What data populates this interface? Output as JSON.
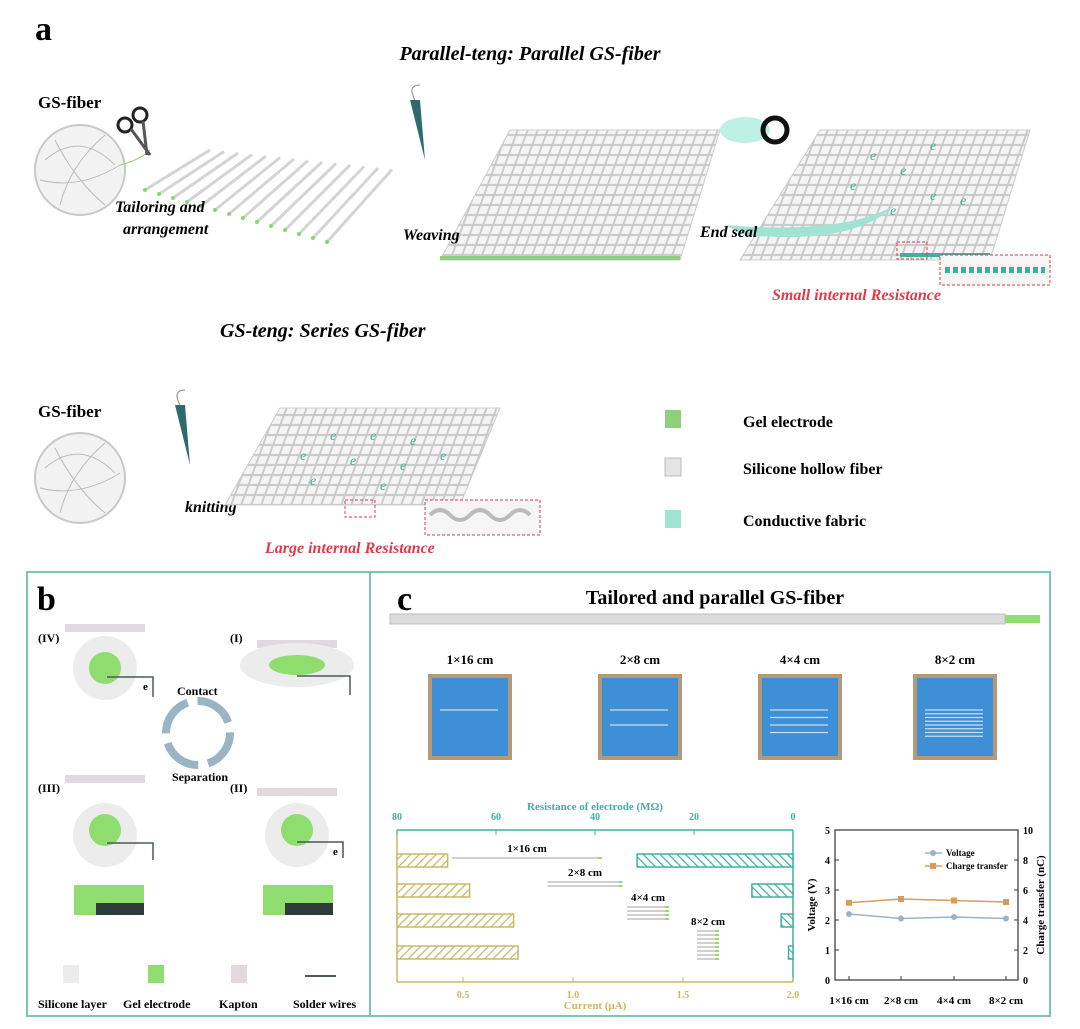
{
  "panel_a": {
    "label": "a",
    "title_parallel": "Parallel-teng: Parallel GS-fiber",
    "title_series": "GS-teng: Series GS-fiber",
    "gs_fiber_label": "GS-fiber",
    "step_tailoring": [
      "Tailoring and",
      "arrangement"
    ],
    "step_weaving": "Weaving",
    "step_end_seal": "End seal",
    "step_knitting": "knitting",
    "small_resistance": "Small  internal Resistance",
    "large_resistance": "Large  internal Resistance",
    "legend": [
      {
        "label": "Gel electrode",
        "color": "#8fd07a"
      },
      {
        "label": "Silicone hollow fiber",
        "color": "#e4e4e4"
      },
      {
        "label": "Conductive fabric",
        "color": "#9fe3d3"
      }
    ],
    "electron_symbol": "e",
    "highlight_color": "#e0394a"
  },
  "panel_b": {
    "label": "b",
    "states": [
      "(IV)",
      "(I)",
      "(III)",
      "(II)"
    ],
    "cycle_contact": "Contact",
    "cycle_separation": "Separation",
    "electron_label": "e",
    "legend": [
      {
        "label": "Silicone  layer",
        "color": "#ececec"
      },
      {
        "label": "Gel electrode",
        "color": "#8fdc6f"
      },
      {
        "label": "Kapton",
        "color": "#e2d8e0"
      },
      {
        "label": "Solder wires",
        "color": "#4a5a5a"
      }
    ]
  },
  "panel_c": {
    "label": "c",
    "title": "Tailored and parallel GS-fiber",
    "samples": [
      "1×16 cm",
      "2×8 cm",
      "4×4 cm",
      "8×2 cm"
    ],
    "photo_color": "#3f8fd6"
  },
  "chart_data": [
    {
      "type": "bar",
      "orientation": "horizontal",
      "categories": [
        "1×16 cm",
        "2×8 cm",
        "4×4 cm",
        "8×2 cm"
      ],
      "series": [
        {
          "axis": "bottom",
          "color": "#c8b866",
          "values": [
            0.43,
            0.53,
            0.73,
            0.75
          ]
        },
        {
          "axis": "top",
          "color": "#3fb0a0",
          "values": [
            31.5,
            8.3,
            2.4,
            0.9
          ]
        }
      ],
      "xlabel_bottom": "Current (μA)",
      "xlim_bottom": [
        0.2,
        2.0
      ],
      "xticks_bottom": [
        "0.5",
        "1.0",
        "1.5",
        "2.0"
      ],
      "xlabel_top": "Resistance of electrode (MΩ)",
      "xlim_top": [
        80,
        0
      ],
      "xticks_top": [
        "80",
        "60",
        "40",
        "20",
        "0"
      ],
      "category_labels": [
        "1×16 cm",
        "2×8 cm",
        "4×4 cm",
        "8×2 cm"
      ]
    },
    {
      "type": "line",
      "categories": [
        "1×16 cm",
        "2×8 cm",
        "4×4 cm",
        "8×2 cm"
      ],
      "series": [
        {
          "name": "Voltage",
          "axis": "left",
          "color": "#9ab4c4",
          "values": [
            2.2,
            2.05,
            2.1,
            2.05
          ]
        },
        {
          "name": "Charge transfer",
          "axis": "right",
          "color": "#d99a5e",
          "values": [
            5.15,
            5.4,
            5.3,
            5.2
          ]
        }
      ],
      "ylabel_left": "Voltage (V)",
      "ylim_left": [
        0,
        5
      ],
      "yticks_left": [
        "0",
        "1",
        "2",
        "3",
        "4",
        "5"
      ],
      "ylabel_right": "Charge transfer (nC)",
      "ylim_right": [
        0,
        10
      ],
      "yticks_right": [
        "0",
        "2",
        "4",
        "6",
        "8",
        "10"
      ],
      "legend_position": "top-right"
    }
  ]
}
